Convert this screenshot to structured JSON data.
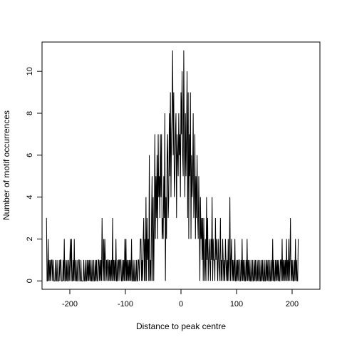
{
  "chart_data": {
    "type": "line",
    "title": "",
    "xlabel": "Distance to peak centre",
    "ylabel": "Number of motif occurrences",
    "xlim": [
      -250,
      250
    ],
    "ylim": [
      -0.4,
      11.4
    ],
    "x_ticks": [
      -200,
      -100,
      0,
      100,
      200
    ],
    "x_tick_labels": [
      "-200",
      "-100",
      "0",
      "100",
      "200"
    ],
    "y_ticks": [
      0,
      2,
      4,
      6,
      8,
      10
    ],
    "y_tick_labels": [
      "0",
      "2",
      "4",
      "6",
      "8",
      "10"
    ],
    "grid": false,
    "legend": "none",
    "line_color": "#000000",
    "x_start": -242,
    "x_step": 1,
    "values": [
      3,
      0,
      0,
      2,
      0,
      1,
      0,
      1,
      0,
      1,
      1,
      0,
      1,
      0,
      0,
      0,
      1,
      0,
      0,
      1,
      0,
      0,
      0,
      1,
      0,
      1,
      1,
      0,
      0,
      0,
      1,
      0,
      2,
      0,
      0,
      1,
      0,
      1,
      0,
      0,
      1,
      0,
      1,
      2,
      0,
      2,
      0,
      0,
      1,
      0,
      2,
      0,
      1,
      0,
      0,
      1,
      0,
      0,
      1,
      1,
      0,
      0,
      1,
      0,
      0,
      0,
      0,
      1,
      0,
      0,
      1,
      0,
      0,
      1,
      0,
      1,
      0,
      1,
      0,
      1,
      0,
      0,
      1,
      0,
      0,
      1,
      0,
      0,
      1,
      0,
      1,
      0,
      0,
      1,
      1,
      0,
      1,
      0,
      1,
      0,
      3,
      1,
      0,
      2,
      0,
      2,
      1,
      0,
      1,
      0,
      1,
      1,
      0,
      1,
      0,
      1,
      0,
      1,
      0,
      3,
      0,
      1,
      0,
      1,
      0,
      2,
      0,
      0,
      1,
      0,
      1,
      1,
      0,
      1,
      1,
      0,
      0,
      1,
      0,
      1,
      0,
      2,
      0,
      2,
      0,
      1,
      0,
      1,
      0,
      1,
      0,
      1,
      0,
      2,
      0,
      0,
      1,
      0,
      0,
      1,
      0,
      0,
      1,
      0,
      0,
      1,
      1,
      0,
      1,
      2,
      2,
      0,
      1,
      0,
      2,
      3,
      0,
      2,
      0,
      4,
      0,
      3,
      1,
      2,
      0,
      6,
      0,
      1,
      0,
      3,
      5,
      0,
      4,
      0,
      3,
      7,
      2,
      5,
      3,
      6,
      2,
      7,
      4,
      5,
      3,
      7,
      4,
      7,
      2,
      3,
      2,
      5,
      3,
      8,
      0,
      4,
      2,
      6,
      7,
      3,
      4,
      8,
      5,
      9,
      4,
      7,
      8,
      11,
      6,
      9,
      4,
      5,
      7,
      8,
      3,
      7,
      6,
      5,
      8,
      6,
      7,
      4,
      9,
      7,
      10,
      6,
      5,
      11,
      7,
      4,
      8,
      5,
      7,
      10,
      3,
      9,
      2,
      7,
      5,
      9,
      2,
      6,
      4,
      5,
      8,
      3,
      4,
      7,
      2,
      5,
      3,
      6,
      3,
      2,
      5,
      3,
      0,
      4,
      2,
      3,
      1,
      3,
      0,
      3,
      1,
      0,
      2,
      0,
      4,
      1,
      3,
      0,
      1,
      2,
      1,
      0,
      2,
      1,
      4,
      0,
      2,
      1,
      1,
      0,
      3,
      1,
      2,
      1,
      0,
      2,
      1,
      0,
      1,
      3,
      0,
      1,
      0,
      2,
      1,
      0,
      1,
      0,
      2,
      1,
      0,
      1,
      0,
      2,
      0,
      1,
      4,
      0,
      1,
      2,
      0,
      1,
      0,
      1,
      0,
      2,
      0,
      0,
      1,
      0,
      1,
      0,
      1,
      1,
      0,
      0,
      1,
      0,
      2,
      0,
      1,
      0,
      1,
      0,
      0,
      1,
      0,
      2,
      0,
      1,
      0,
      1,
      0,
      0,
      1,
      0,
      0,
      1,
      0,
      0,
      1,
      0,
      1,
      0,
      0,
      1,
      0,
      1,
      0,
      0,
      1,
      0,
      0,
      1,
      0,
      1,
      0,
      0,
      1,
      0,
      0,
      1,
      0,
      1,
      0,
      1,
      0,
      0,
      1,
      0,
      0,
      1,
      0,
      2,
      0,
      1,
      0,
      0,
      1,
      0,
      1,
      0,
      1,
      0,
      1,
      0,
      0,
      1,
      1,
      0,
      2,
      0,
      1,
      0,
      1,
      0,
      1,
      0,
      2,
      0,
      1,
      0,
      2,
      0,
      1,
      3,
      0,
      1,
      0,
      1,
      0,
      0,
      1,
      0,
      2,
      0,
      1,
      0,
      0,
      2
    ]
  }
}
